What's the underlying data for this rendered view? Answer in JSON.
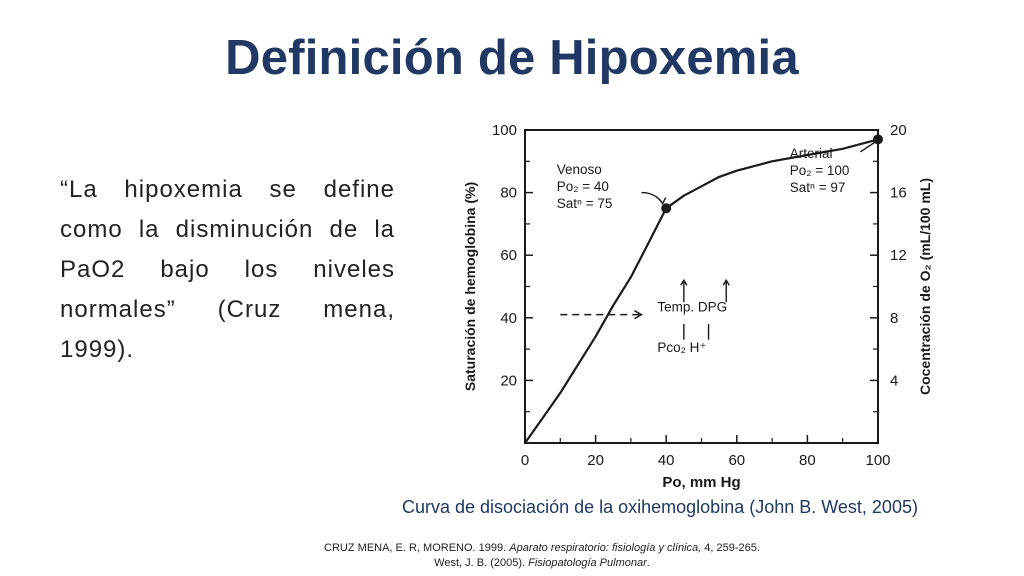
{
  "slide": {
    "title": "Definición de Hipoxemia",
    "quote": "“La hipoxemia se define como la disminución de la PaO2 bajo los niveles normales” (Cruz mena, 1999).",
    "caption": "Curva de disociación de la oxihemoglobina (John B. West, 2005)",
    "references": [
      {
        "plain_before": "CRUZ MENA, E. R, MORENO. 1999. ",
        "italic": "Aparato respiratorio: fisiología y clínica,",
        "plain_after": " 4, 259-265."
      },
      {
        "plain_before": "West, J. B. (2005). ",
        "italic": "Fisiopatología Pulmonar",
        "plain_after": "."
      }
    ]
  },
  "chart_data": {
    "type": "line",
    "xlabel": "Po, mm Hg",
    "ylabel": "Saturación de hemoglobina (%)",
    "y2label": "Cocentración de O₂ (mL/100 mL)",
    "xlim": [
      0,
      100
    ],
    "ylim": [
      0,
      100
    ],
    "y2lim": [
      0,
      20
    ],
    "x_ticks": [
      "0",
      "20",
      "40",
      "60",
      "80",
      "100"
    ],
    "y_ticks": [
      "20",
      "40",
      "60",
      "80",
      "100"
    ],
    "y2_ticks": [
      "4",
      "8",
      "12",
      "16",
      "20"
    ],
    "series": [
      {
        "x": [
          0,
          5,
          10,
          15,
          20,
          25,
          30,
          35,
          40,
          45,
          50,
          55,
          60,
          70,
          80,
          90,
          100
        ],
        "y": [
          0,
          8,
          16,
          25,
          34,
          44,
          53,
          64,
          75,
          79,
          82,
          85,
          87,
          90,
          92,
          94,
          97
        ]
      }
    ],
    "points": [
      {
        "x": 40,
        "y": 75
      },
      {
        "x": 100,
        "y": 97
      }
    ],
    "annotations": [
      {
        "id": "venoso",
        "lines": [
          "Venoso",
          "Po₂ = 40",
          "Satⁿ = 75"
        ]
      },
      {
        "id": "arterial",
        "lines": [
          "Arterial",
          "Po₂ = 100",
          "Satⁿ = 97"
        ]
      },
      {
        "id": "shift",
        "top": "Temp.  DPG",
        "bottom": "Pco₂  H⁺"
      }
    ],
    "grid": false
  }
}
